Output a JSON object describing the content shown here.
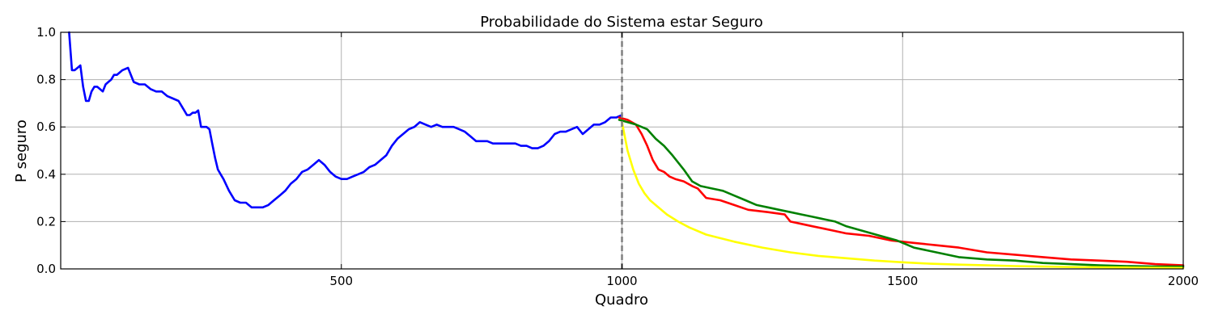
{
  "chart_data": {
    "type": "line",
    "title": "Probabilidade do Sistema estar Seguro",
    "xlabel": "Quadro",
    "ylabel": "P seguro",
    "xlim": [
      0,
      2000
    ],
    "ylim": [
      0.0,
      1.0
    ],
    "xticks": [
      500,
      1000,
      1500,
      2000
    ],
    "xtick_labels": [
      "500",
      "1000",
      "1500",
      "2000"
    ],
    "yticks": [
      0.0,
      0.2,
      0.4,
      0.6,
      0.8,
      1.0
    ],
    "ytick_labels": [
      "0.0",
      "0.2",
      "0.4",
      "0.6",
      "0.8",
      "1.0"
    ],
    "grid": true,
    "vline": {
      "x": 1000,
      "color": "#808080",
      "style": "dashed"
    },
    "series": [
      {
        "color": "#0000ff",
        "x": [
          15,
          20,
          25,
          30,
          35,
          40,
          45,
          50,
          55,
          60,
          65,
          70,
          75,
          80,
          85,
          90,
          95,
          100,
          110,
          120,
          130,
          140,
          150,
          160,
          170,
          180,
          190,
          200,
          210,
          220,
          225,
          230,
          235,
          240,
          245,
          250,
          255,
          260,
          265,
          270,
          275,
          280,
          285,
          290,
          300,
          310,
          320,
          330,
          340,
          350,
          360,
          370,
          380,
          390,
          400,
          410,
          420,
          430,
          440,
          450,
          460,
          470,
          480,
          490,
          500,
          510,
          520,
          530,
          540,
          550,
          560,
          570,
          580,
          590,
          600,
          610,
          620,
          630,
          640,
          650,
          660,
          670,
          680,
          690,
          700,
          710,
          720,
          730,
          740,
          750,
          760,
          770,
          780,
          790,
          800,
          810,
          820,
          830,
          840,
          850,
          860,
          870,
          880,
          890,
          900,
          910,
          920,
          930,
          940,
          950,
          960,
          970,
          980,
          990,
          1000
        ],
        "y": [
          1.0,
          0.84,
          0.84,
          0.85,
          0.86,
          0.77,
          0.71,
          0.71,
          0.75,
          0.77,
          0.77,
          0.76,
          0.75,
          0.78,
          0.79,
          0.8,
          0.82,
          0.82,
          0.84,
          0.85,
          0.79,
          0.78,
          0.78,
          0.76,
          0.75,
          0.75,
          0.73,
          0.72,
          0.71,
          0.67,
          0.65,
          0.65,
          0.66,
          0.66,
          0.67,
          0.6,
          0.6,
          0.6,
          0.59,
          0.53,
          0.47,
          0.42,
          0.4,
          0.38,
          0.33,
          0.29,
          0.28,
          0.28,
          0.26,
          0.26,
          0.26,
          0.27,
          0.29,
          0.31,
          0.33,
          0.36,
          0.38,
          0.41,
          0.42,
          0.44,
          0.46,
          0.44,
          0.41,
          0.39,
          0.38,
          0.38,
          0.39,
          0.4,
          0.41,
          0.43,
          0.44,
          0.46,
          0.48,
          0.52,
          0.55,
          0.57,
          0.59,
          0.6,
          0.62,
          0.61,
          0.6,
          0.61,
          0.6,
          0.6,
          0.6,
          0.59,
          0.58,
          0.56,
          0.54,
          0.54,
          0.54,
          0.53,
          0.53,
          0.53,
          0.53,
          0.53,
          0.52,
          0.52,
          0.51,
          0.51,
          0.52,
          0.54,
          0.57,
          0.58,
          0.58,
          0.59,
          0.6,
          0.57,
          0.59,
          0.61,
          0.61,
          0.62,
          0.64,
          0.64,
          0.65
        ]
      },
      {
        "color": "#ff0000",
        "x": [
          995,
          1010,
          1025,
          1035,
          1045,
          1055,
          1065,
          1075,
          1085,
          1095,
          1110,
          1125,
          1135,
          1150,
          1175,
          1200,
          1225,
          1260,
          1290,
          1300,
          1320,
          1340,
          1360,
          1380,
          1400,
          1440,
          1480,
          1520,
          1560,
          1600,
          1650,
          1700,
          1750,
          1800,
          1850,
          1900,
          1950,
          2000
        ],
        "y": [
          0.64,
          0.63,
          0.61,
          0.57,
          0.52,
          0.46,
          0.42,
          0.41,
          0.39,
          0.38,
          0.37,
          0.35,
          0.34,
          0.3,
          0.29,
          0.27,
          0.25,
          0.24,
          0.23,
          0.2,
          0.19,
          0.18,
          0.17,
          0.16,
          0.15,
          0.14,
          0.12,
          0.11,
          0.1,
          0.09,
          0.07,
          0.06,
          0.05,
          0.04,
          0.035,
          0.03,
          0.02,
          0.015
        ]
      },
      {
        "color": "#008000",
        "x": [
          995,
          1010,
          1025,
          1045,
          1060,
          1075,
          1090,
          1110,
          1125,
          1140,
          1160,
          1180,
          1200,
          1220,
          1240,
          1260,
          1280,
          1300,
          1320,
          1340,
          1360,
          1380,
          1400,
          1430,
          1460,
          1490,
          1520,
          1560,
          1600,
          1650,
          1700,
          1750,
          1800,
          1850,
          1900,
          1950,
          2000
        ],
        "y": [
          0.63,
          0.62,
          0.61,
          0.59,
          0.55,
          0.52,
          0.48,
          0.42,
          0.37,
          0.35,
          0.34,
          0.33,
          0.31,
          0.29,
          0.27,
          0.26,
          0.25,
          0.24,
          0.23,
          0.22,
          0.21,
          0.2,
          0.18,
          0.16,
          0.14,
          0.12,
          0.09,
          0.07,
          0.05,
          0.04,
          0.035,
          0.025,
          0.02,
          0.015,
          0.012,
          0.01,
          0.01
        ]
      },
      {
        "color": "#ffff00",
        "x": [
          1000,
          1010,
          1020,
          1030,
          1040,
          1050,
          1060,
          1080,
          1100,
          1120,
          1150,
          1200,
          1250,
          1300,
          1350,
          1400,
          1450,
          1500,
          1550,
          1600,
          1650,
          1700,
          1750,
          1800,
          1850,
          1900,
          1950,
          2000
        ],
        "y": [
          0.62,
          0.5,
          0.42,
          0.36,
          0.32,
          0.29,
          0.27,
          0.23,
          0.2,
          0.175,
          0.145,
          0.115,
          0.09,
          0.07,
          0.055,
          0.045,
          0.035,
          0.028,
          0.022,
          0.018,
          0.015,
          0.012,
          0.01,
          0.008,
          0.007,
          0.006,
          0.005,
          0.004
        ]
      }
    ]
  }
}
